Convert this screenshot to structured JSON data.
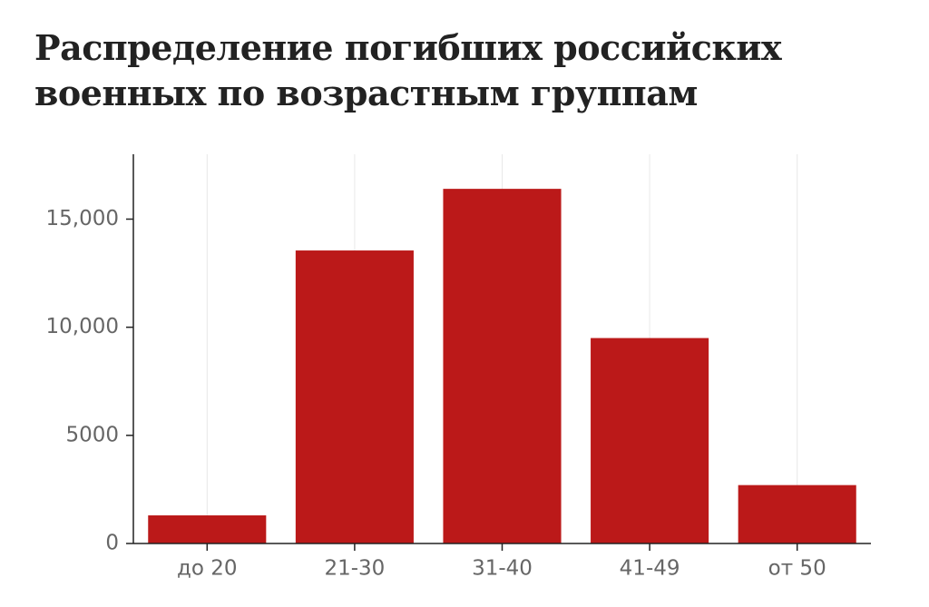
{
  "chart_data": {
    "type": "bar",
    "title": "Распределение погибших российских военных по возрастным группам",
    "categories": [
      "до 20",
      "21-30",
      "31-40",
      "41-49",
      "от 50"
    ],
    "values": [
      1300,
      13550,
      16400,
      9500,
      2700
    ],
    "color": "#bb1919",
    "ylim": [
      0,
      18000
    ],
    "yticks": [
      0,
      5000,
      {
        "value": 10000,
        "label": "10,000"
      },
      {
        "value": 15000,
        "label": "15,000"
      }
    ],
    "grid": true
  }
}
